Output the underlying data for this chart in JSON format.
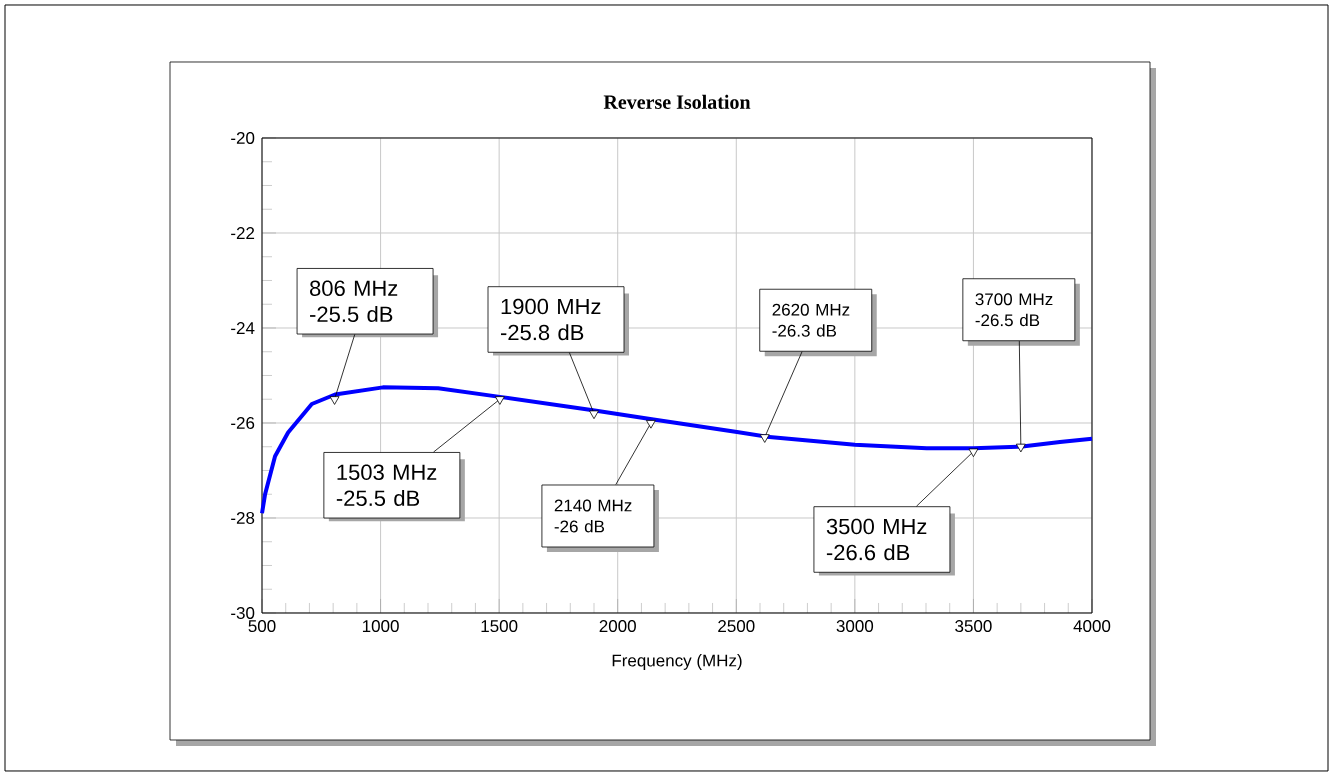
{
  "chart_data": {
    "type": "line",
    "title": "Reverse Isolation",
    "xlabel": "Frequency (MHz)",
    "x": [
      500,
      513,
      555,
      610,
      710,
      808,
      1010,
      1243,
      1503,
      1896,
      2144,
      2503,
      2628,
      3000,
      3303,
      3500,
      3697,
      3865,
      4000
    ],
    "series": [
      {
        "color": "#0000ff",
        "values": [
          -27.9,
          -27.5,
          -26.7,
          -26.2,
          -25.6,
          -25.4,
          -25.25,
          -25.27,
          -25.45,
          -25.73,
          -25.92,
          -26.19,
          -26.29,
          -26.46,
          -26.53,
          -26.53,
          -26.5,
          -26.4,
          -26.33
        ]
      }
    ],
    "xlim": [
      500,
      4000
    ],
    "xticks": [
      500,
      1000,
      1500,
      2000,
      2500,
      3000,
      3500,
      4000
    ],
    "ylim": [
      -30,
      -20
    ],
    "yticks": [
      -30,
      -28,
      -26,
      -24,
      -22,
      -20
    ],
    "grid": true,
    "marker": "none",
    "line_style": "solid",
    "annotations": [
      {
        "text": "806 MHz -25.5 dB",
        "x": 806,
        "y": -25.5
      },
      {
        "text": "1503 MHz -25.5 dB",
        "x": 1503,
        "y": -25.5
      },
      {
        "text": "1900 MHz -25.8 dB",
        "x": 1900,
        "y": -25.8
      },
      {
        "text": "2140 MHz -26 dB",
        "x": 2140,
        "y": -26
      },
      {
        "text": "2620 MHz -26.3 dB",
        "x": 2620,
        "y": -26.3
      },
      {
        "text": "3500 MHz -26.6 dB",
        "x": 3500,
        "y": -26.6
      },
      {
        "text": "3700 MHz -26.5 dB",
        "x": 3700,
        "y": -26.5
      }
    ]
  }
}
